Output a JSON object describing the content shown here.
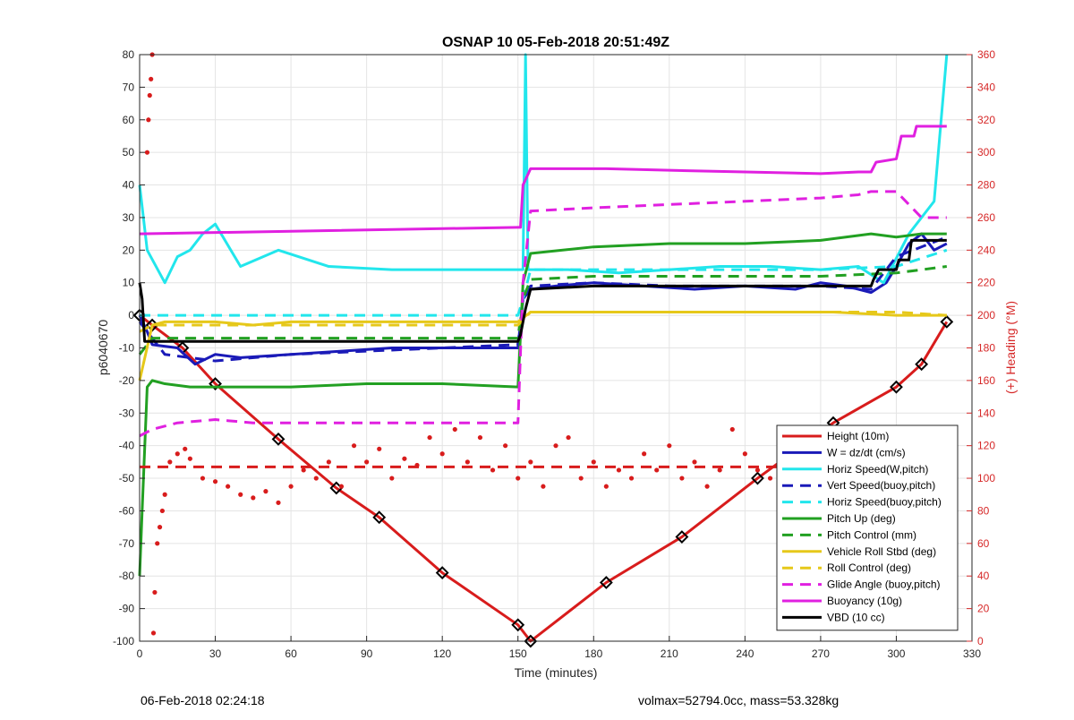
{
  "chart_data": {
    "type": "line",
    "title": "OSNAP 10 05-Feb-2018 20:51:49Z",
    "xlabel": "Time (minutes)",
    "ylabel": "p6040670",
    "ylabel_right": "(+) Heading (°M)",
    "xlim": [
      0,
      330
    ],
    "ylim": [
      -100,
      80
    ],
    "ylim_right": [
      0,
      360
    ],
    "xticks": [
      0,
      30,
      60,
      90,
      120,
      150,
      180,
      210,
      240,
      270,
      300,
      330
    ],
    "yticks": [
      -100,
      -90,
      -80,
      -70,
      -60,
      -50,
      -40,
      -30,
      -20,
      -10,
      0,
      10,
      20,
      30,
      40,
      50,
      60,
      70,
      80
    ],
    "yticks_right": [
      0,
      20,
      40,
      60,
      80,
      100,
      120,
      140,
      160,
      180,
      200,
      220,
      240,
      260,
      280,
      300,
      320,
      340,
      360
    ],
    "grid": true,
    "legend_position": "bottom-right",
    "colors": {
      "axis_right": "#d62828"
    },
    "series": [
      {
        "name": "Height (10m)",
        "color": "#d81c1c",
        "style": "solid",
        "marker": "diamond",
        "x": [
          0,
          5,
          17,
          30,
          55,
          78,
          95,
          120,
          150,
          155,
          185,
          215,
          245,
          275,
          300,
          310,
          320
        ],
        "y": [
          0,
          -3,
          -10,
          -21,
          -38,
          -53,
          -62,
          -79,
          -95,
          -100,
          -82,
          -68,
          -50,
          -33,
          -22,
          -15,
          -2
        ]
      },
      {
        "name": "W = dz/dt (cm/s)",
        "color": "#1a1ab8",
        "style": "solid",
        "x": [
          0,
          3,
          5,
          15,
          22,
          30,
          40,
          60,
          80,
          100,
          120,
          140,
          150,
          152,
          155,
          165,
          180,
          200,
          220,
          240,
          260,
          270,
          280,
          290,
          296,
          300,
          305,
          310,
          315,
          320
        ],
        "y": [
          0,
          -5,
          -9,
          -10,
          -15,
          -12,
          -13,
          -12,
          -11,
          -10,
          -10,
          -10,
          -10,
          5,
          8,
          9,
          10,
          9,
          8,
          9,
          8,
          10,
          9,
          7,
          10,
          15,
          22,
          25,
          20,
          22
        ]
      },
      {
        "name": "Horiz Speed(W,pitch)",
        "color": "#22e6ec",
        "style": "solid",
        "x": [
          0,
          3,
          10,
          15,
          20,
          25,
          30,
          40,
          55,
          75,
          100,
          120,
          140,
          152,
          153,
          154,
          155,
          170,
          190,
          210,
          230,
          250,
          270,
          285,
          295,
          305,
          315,
          320
        ],
        "y": [
          40,
          20,
          10,
          18,
          20,
          25,
          28,
          15,
          20,
          15,
          14,
          14,
          14,
          14,
          80,
          14,
          14,
          14,
          13,
          14,
          15,
          15,
          14,
          15,
          10,
          25,
          35,
          80
        ]
      },
      {
        "name": "Vert Speed(buoy,pitch)",
        "color": "#1a1ab8",
        "style": "dashed",
        "x": [
          0,
          10,
          30,
          60,
          90,
          120,
          150,
          152,
          155,
          180,
          210,
          240,
          270,
          290,
          300,
          320
        ],
        "y": [
          -2,
          -12,
          -14,
          -12,
          -11,
          -10,
          -9,
          5,
          9,
          10,
          9,
          9,
          9,
          8,
          18,
          24
        ]
      },
      {
        "name": "Horiz Speed(buoy,pitch)",
        "color": "#22e6ec",
        "style": "dashed",
        "x": [
          0,
          150,
          152,
          155,
          180,
          210,
          240,
          270,
          300,
          320
        ],
        "y": [
          0,
          0,
          5,
          14,
          14,
          14,
          14,
          14,
          15,
          20
        ]
      },
      {
        "name": "Pitch Up (deg)",
        "color": "#22a022",
        "style": "solid",
        "x": [
          0,
          1,
          3,
          5,
          10,
          20,
          30,
          60,
          90,
          120,
          150,
          152,
          155,
          180,
          210,
          240,
          270,
          290,
          300,
          310,
          320
        ],
        "y": [
          -80,
          -60,
          -22,
          -20,
          -21,
          -22,
          -22,
          -22,
          -21,
          -21,
          -22,
          10,
          19,
          21,
          22,
          22,
          23,
          25,
          24,
          25,
          25
        ]
      },
      {
        "name": "Pitch Control (mm)",
        "color": "#22a022",
        "style": "dashed",
        "x": [
          0,
          5,
          30,
          60,
          90,
          120,
          150,
          152,
          155,
          180,
          210,
          240,
          270,
          300,
          320
        ],
        "y": [
          -12,
          -7,
          -7,
          -7,
          -7,
          -7,
          -7,
          5,
          11,
          12,
          12,
          12,
          12,
          13,
          15
        ]
      },
      {
        "name": "Vehicle Roll Stbd (deg)",
        "color": "#e6c81a",
        "style": "solid",
        "x": [
          0,
          5,
          10,
          20,
          30,
          45,
          60,
          80,
          100,
          120,
          150,
          155,
          175,
          200,
          225,
          250,
          275,
          300,
          320
        ],
        "y": [
          -20,
          -3,
          -2,
          -2,
          -2,
          -3,
          -2,
          -2,
          -2,
          -2,
          -2,
          1,
          1,
          1,
          1,
          1,
          1,
          0,
          0
        ]
      },
      {
        "name": "Roll Control (deg)",
        "color": "#e6c81a",
        "style": "dashed",
        "x": [
          0,
          5,
          30,
          60,
          90,
          120,
          150,
          155,
          180,
          210,
          240,
          270,
          300,
          320
        ],
        "y": [
          -5,
          -3,
          -3,
          -3,
          -3,
          -3,
          -3,
          1,
          1,
          1,
          1,
          1,
          1,
          0
        ]
      },
      {
        "name": "Glide Angle (buoy,pitch)",
        "color": "#e020e0",
        "style": "dashed",
        "x": [
          0,
          5,
          15,
          30,
          45,
          60,
          90,
          120,
          150,
          152,
          155,
          180,
          210,
          240,
          270,
          285,
          290,
          300,
          310,
          320
        ],
        "y": [
          -37,
          -35,
          -33,
          -32,
          -33,
          -33,
          -33,
          -33,
          -33,
          10,
          32,
          33,
          34,
          35,
          36,
          37,
          38,
          38,
          30,
          30
        ]
      },
      {
        "name": "Buoyancy (10g)",
        "color": "#e020e0",
        "style": "solid",
        "x": [
          0,
          150,
          151,
          152,
          155,
          185,
          210,
          240,
          270,
          285,
          290,
          292,
          300,
          302,
          307,
          308,
          310,
          320
        ],
        "y": [
          25,
          27,
          27,
          40,
          45,
          45,
          44.5,
          44,
          43.5,
          44,
          44,
          47,
          48,
          55,
          55,
          58,
          58,
          58
        ]
      },
      {
        "name": "VBD (10 cc)",
        "color": "#000000",
        "style": "solid",
        "x": [
          0,
          1,
          2,
          5,
          30,
          60,
          90,
          120,
          150,
          151,
          152,
          153,
          155,
          180,
          210,
          240,
          270,
          290,
          291,
          293,
          300,
          301,
          305,
          306,
          320
        ],
        "y": [
          10,
          5,
          -8,
          -8,
          -8,
          -8,
          -8,
          -8,
          -8,
          -6,
          -2,
          2,
          8,
          9,
          9,
          9,
          9,
          9,
          11,
          14,
          14,
          17,
          17,
          23,
          23
        ]
      },
      {
        "name": "",
        "color": "#d81c1c",
        "style": "dashed",
        "axis": "right",
        "note": "",
        "x": [
          0,
          320
        ],
        "y": [
          107,
          107
        ]
      }
    ],
    "heading_points": {
      "color": "#d81c1c",
      "axis": "right",
      "x": [
        3,
        3.5,
        4,
        4.5,
        5,
        5.5,
        6,
        7,
        8,
        9,
        10,
        12,
        15,
        18,
        20,
        25,
        30,
        35,
        40,
        45,
        50,
        55,
        60,
        65,
        70,
        75,
        80,
        85,
        90,
        95,
        100,
        105,
        110,
        115,
        120,
        125,
        130,
        135,
        140,
        145,
        150,
        155,
        160,
        165,
        170,
        175,
        180,
        185,
        190,
        195,
        200,
        205,
        210,
        215,
        220,
        225,
        230,
        235,
        240,
        245,
        250,
        255,
        260,
        265,
        270,
        275,
        280,
        285,
        290,
        295,
        300,
        305,
        310,
        315,
        320
      ],
      "y": [
        300,
        320,
        335,
        345,
        360,
        5,
        30,
        60,
        70,
        80,
        90,
        110,
        115,
        118,
        112,
        100,
        98,
        95,
        90,
        88,
        92,
        85,
        95,
        105,
        100,
        110,
        95,
        120,
        110,
        118,
        100,
        112,
        108,
        125,
        115,
        130,
        110,
        125,
        105,
        120,
        100,
        110,
        95,
        120,
        125,
        100,
        110,
        95,
        105,
        100,
        115,
        105,
        120,
        100,
        110,
        95,
        105,
        130,
        115,
        105,
        100,
        125,
        110,
        115,
        120,
        115,
        110,
        125,
        130,
        115,
        110,
        130,
        120,
        125,
        60
      ]
    }
  },
  "footer": {
    "left": "06-Feb-2018 02:24:18",
    "right": "volmax=52794.0cc, mass=53.328kg"
  }
}
